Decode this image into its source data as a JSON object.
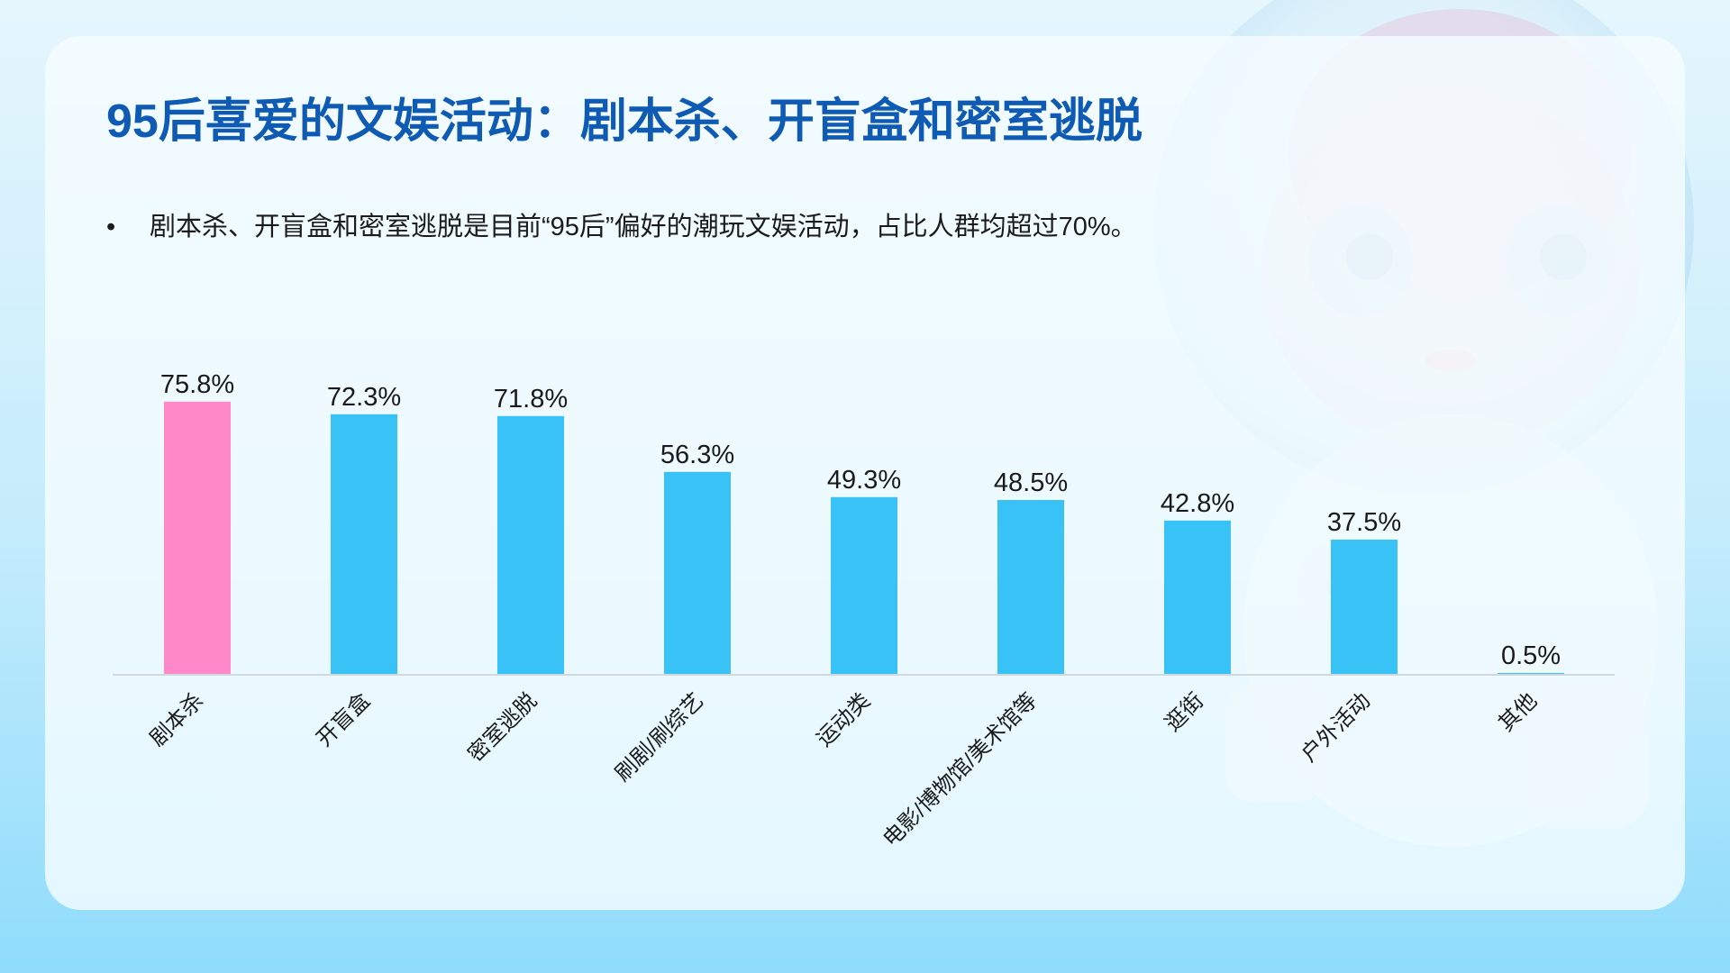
{
  "slide": {
    "title": "95后喜爱的文娱活动：剧本杀、开盲盒和密室逃脱",
    "bullet_symbol": "•",
    "bullet_text": "剧本杀、开盲盒和密室逃脱是目前“95后”偏好的潮玩文娱活动，占比人群均超过70%。"
  },
  "colors": {
    "title": "#0f5bb3",
    "highlight_bar": "#ff88c8",
    "bar": "#38c2f6",
    "axis": "#cfd8dd"
  },
  "chart_data": {
    "type": "bar",
    "categories": [
      "剧本杀",
      "开盲盒",
      "密室逃脱",
      "刷剧/刷综艺",
      "运动类",
      "电影/博物馆/美术馆等",
      "逛街",
      "户外活动",
      "其他"
    ],
    "values": [
      75.8,
      72.3,
      71.8,
      56.3,
      49.3,
      48.5,
      42.8,
      37.5,
      0.5
    ],
    "value_labels": [
      "75.8%",
      "72.3%",
      "71.8%",
      "56.3%",
      "49.3%",
      "48.5%",
      "42.8%",
      "37.5%",
      "0.5%"
    ],
    "highlight_index": 0,
    "unit": "%",
    "ylim": [
      0,
      80
    ],
    "grid": false,
    "legend": "none"
  }
}
